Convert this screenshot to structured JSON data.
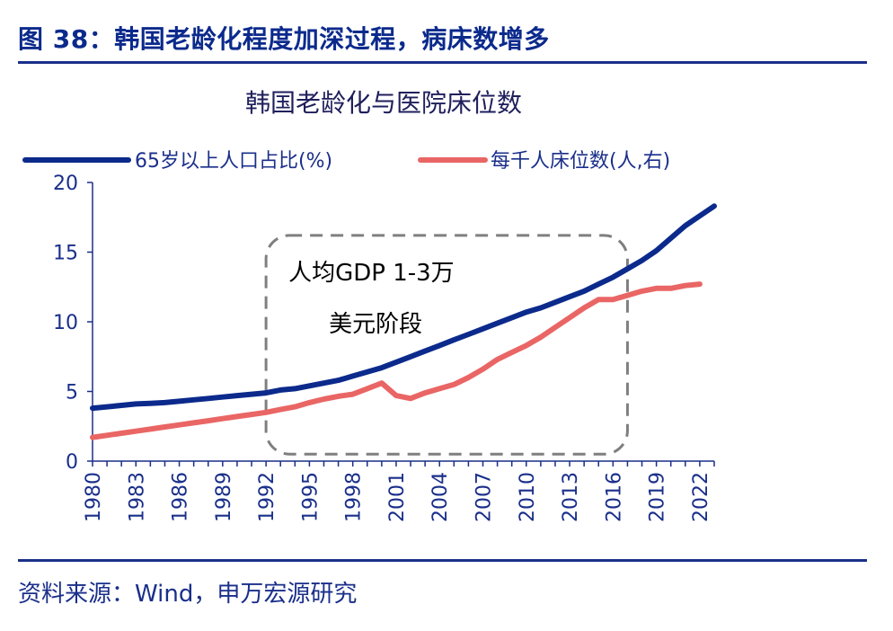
{
  "figure": {
    "title": "图 38：韩国老龄化程度加深过程，病床数增多",
    "source": "资料来源：Wind，申万宏源研究"
  },
  "chart_data": {
    "type": "line",
    "title": "韩国老龄化与医院床位数",
    "xlabel": "",
    "ylabel": "",
    "ylim": [
      0,
      20
    ],
    "yticks": [
      0,
      5,
      10,
      15,
      20
    ],
    "xlim": [
      1980,
      2023
    ],
    "xticks": [
      "1980",
      "1983",
      "1986",
      "1989",
      "1992",
      "1995",
      "1998",
      "2001",
      "2004",
      "2007",
      "2010",
      "2013",
      "2016",
      "2019",
      "2022"
    ],
    "legend_position": "top",
    "grid": false,
    "series": [
      {
        "name": "65岁以上人口占比(%)",
        "color": "#0b2a8c",
        "x": [
          1980,
          1981,
          1982,
          1983,
          1984,
          1985,
          1986,
          1987,
          1988,
          1989,
          1990,
          1991,
          1992,
          1993,
          1994,
          1995,
          1996,
          1997,
          1998,
          1999,
          2000,
          2001,
          2002,
          2003,
          2004,
          2005,
          2006,
          2007,
          2008,
          2009,
          2010,
          2011,
          2012,
          2013,
          2014,
          2015,
          2016,
          2017,
          2018,
          2019,
          2020,
          2021,
          2022,
          2023
        ],
        "values": [
          3.8,
          3.9,
          4.0,
          4.1,
          4.15,
          4.2,
          4.3,
          4.4,
          4.5,
          4.6,
          4.7,
          4.8,
          4.9,
          5.1,
          5.2,
          5.4,
          5.6,
          5.8,
          6.1,
          6.4,
          6.7,
          7.1,
          7.5,
          7.9,
          8.3,
          8.7,
          9.1,
          9.5,
          9.9,
          10.3,
          10.7,
          11.0,
          11.4,
          11.8,
          12.2,
          12.7,
          13.2,
          13.8,
          14.4,
          15.1,
          16.0,
          16.9,
          17.6,
          18.3
        ]
      },
      {
        "name": "每千人床位数(人,右)",
        "color": "#e96665",
        "x": [
          1980,
          1981,
          1982,
          1983,
          1984,
          1985,
          1986,
          1987,
          1988,
          1989,
          1990,
          1991,
          1992,
          1993,
          1994,
          1995,
          1996,
          1997,
          1998,
          1999,
          2000,
          2001,
          2002,
          2003,
          2004,
          2005,
          2006,
          2007,
          2008,
          2009,
          2010,
          2011,
          2012,
          2013,
          2014,
          2015,
          2016,
          2017,
          2018,
          2019,
          2020,
          2021,
          2022
        ],
        "values": [
          1.7,
          1.85,
          2.0,
          2.15,
          2.3,
          2.45,
          2.6,
          2.75,
          2.9,
          3.05,
          3.2,
          3.35,
          3.5,
          3.7,
          3.9,
          4.2,
          4.45,
          4.65,
          4.8,
          5.2,
          5.6,
          4.7,
          4.5,
          4.9,
          5.2,
          5.5,
          6.0,
          6.6,
          7.3,
          7.8,
          8.3,
          8.9,
          9.6,
          10.3,
          11.0,
          11.6,
          11.6,
          11.9,
          12.2,
          12.4,
          12.4,
          12.6,
          12.7
        ]
      }
    ],
    "annotation_box": {
      "x_start": 1992,
      "x_end": 2017,
      "y_start": 0.5,
      "y_end": 16.2,
      "lines": [
        "人均GDP 1-3万",
        "美元阶段"
      ]
    }
  }
}
